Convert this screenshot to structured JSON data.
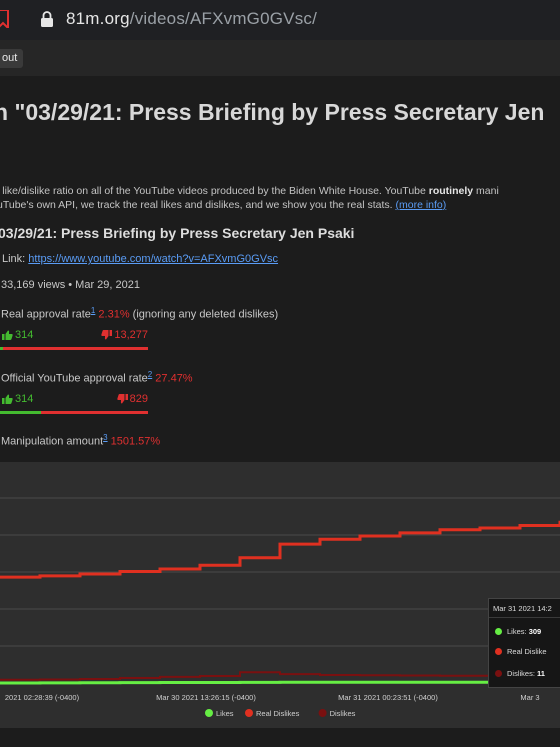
{
  "browser": {
    "url_host": "81m.org",
    "url_path": "/videos/AFXvmG0GVsc/"
  },
  "nav": {
    "about_label": "out"
  },
  "page": {
    "title": "n \"03/29/21: Press Briefing by Press Secretary Jen",
    "intro_line1_a": "l like/dislike ratio on all of the YouTube videos produced by the Biden White House. YouTube ",
    "intro_line1_bold": "routinely",
    "intro_line1_b": " mani",
    "intro_line2": "uTube's own API, we track the real likes and dislikes, and we show you the real stats. ",
    "more_info_label": "(more info)"
  },
  "video": {
    "title": "03/29/21: Press Briefing by Press Secretary Jen Psaki",
    "link_label": "Link: ",
    "link_url": "https://www.youtube.com/watch?v=AFXvmG0GVsc",
    "views_line": "33,169 views • Mar 29, 2021"
  },
  "stats": {
    "real_label": "Real approval rate",
    "real_sup": "1",
    "real_value": "2.31%",
    "real_note": " (ignoring any deleted dislikes)",
    "real_likes": "314",
    "real_dislikes": "13,277",
    "real_fraction": 0.0231,
    "yt_label": "Official YouTube approval rate",
    "yt_sup": "2",
    "yt_value": "27.47%",
    "yt_likes": "314",
    "yt_dislikes": "829",
    "yt_fraction": 0.2747,
    "manip_label": "Manipulation amount",
    "manip_sup": "3",
    "manip_value": "1501.57%"
  },
  "chart_data": {
    "type": "line",
    "x_ticks": [
      "2021 02:28:39 (-0400)",
      "Mar 30 2021 13:26:15 (-0400)",
      "Mar 31 2021 00:23:51 (-0400)",
      "Mar 3"
    ],
    "series": [
      {
        "name": "Likes",
        "color": "#66ee44",
        "values": [
          240,
          250,
          260,
          270,
          280,
          285,
          290,
          295,
          298,
          300,
          302,
          305,
          309,
          312,
          314
        ]
      },
      {
        "name": "Real Dislikes",
        "color": "#e03020",
        "values": [
          8750,
          8850,
          9000,
          9200,
          9400,
          9700,
          10300,
          11400,
          11800,
          12050,
          12300,
          12550,
          12700,
          12900,
          13277
        ]
      },
      {
        "name": "Dislikes",
        "color": "#7a1010",
        "values": [
          500,
          520,
          560,
          640,
          730,
          800,
          1100,
          960,
          880,
          860,
          840,
          830,
          829,
          829,
          829
        ]
      }
    ],
    "ylim": [
      0,
      18000
    ],
    "grid": true,
    "legend_position": "bottom",
    "tooltip": {
      "date": "Mar 31 2021 14:2",
      "likes_label": "Likes: ",
      "likes_value": "309",
      "real_label": "Real Dislike",
      "dislikes_label": "Dislikes: ",
      "dislikes_value": "11"
    }
  }
}
